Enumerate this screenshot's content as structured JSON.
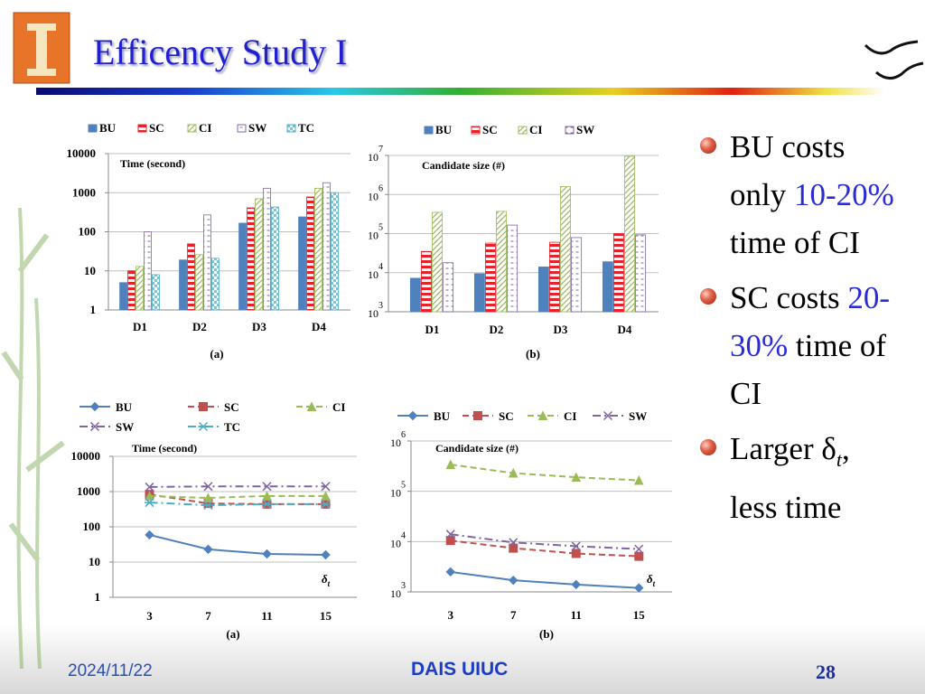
{
  "slide": {
    "title": "Efficency Study I",
    "bullets": [
      {
        "text": "BU costs only ",
        "highlight": "10-20%",
        "after": " time of CI"
      },
      {
        "text": "SC costs ",
        "highlight": "20-30%",
        "after": " time of CI"
      },
      {
        "text": "Larger δ",
        "sub": "t",
        "after": ", less time"
      }
    ],
    "footer": {
      "date": "2024/11/22",
      "org": "DAIS UIUC",
      "page": "28"
    }
  },
  "chart_data": [
    {
      "type": "bar",
      "label": "(a)",
      "ylabel": "Time (second)",
      "log_scale": true,
      "grid": true,
      "categories": [
        "D1",
        "D2",
        "D3",
        "D4"
      ],
      "series": [
        {
          "name": "BU",
          "color": "#4f81bd",
          "values": [
            5,
            19,
            166,
            240
          ]
        },
        {
          "name": "SC",
          "color": "#e8202a",
          "values": [
            10,
            49,
            410,
            780
          ]
        },
        {
          "name": "CI",
          "color": "#9bbb59",
          "values": [
            13,
            26,
            700,
            1300
          ]
        },
        {
          "name": "SW",
          "color": "#8064a2",
          "values": [
            100,
            270,
            1300,
            1800
          ]
        },
        {
          "name": "TC",
          "color": "#4bacc6",
          "values": [
            8,
            21,
            430,
            1000
          ]
        }
      ],
      "ylim": [
        1,
        10000
      ],
      "yticks": [
        1,
        10,
        100,
        1000,
        10000
      ]
    },
    {
      "type": "bar",
      "label": "(b)",
      "ylabel": "Candidate size (#)",
      "log_scale": true,
      "grid": true,
      "categories": [
        "D1",
        "D2",
        "D3",
        "D4"
      ],
      "series": [
        {
          "name": "BU",
          "color": "#4f81bd",
          "values": [
            7200,
            9400,
            14000,
            19000
          ]
        },
        {
          "name": "SC",
          "color": "#e8202a",
          "values": [
            35000,
            57000,
            60000,
            100000
          ]
        },
        {
          "name": "CI",
          "color": "#9bbb59",
          "values": [
            350000,
            370000,
            1600000,
            9500000
          ]
        },
        {
          "name": "SW",
          "color": "#8064a2",
          "values": [
            18000,
            165000,
            79000,
            93000
          ]
        }
      ],
      "ylim": [
        1000,
        10000000
      ],
      "yticks": [
        {
          "value": 1000,
          "label": "10",
          "exponent": "3"
        },
        {
          "value": 10000,
          "label": "10",
          "exponent": "4"
        },
        {
          "value": 100000,
          "label": "10",
          "exponent": "5"
        },
        {
          "value": 1000000,
          "label": "10",
          "exponent": "6"
        },
        {
          "value": 10000000,
          "label": "10",
          "exponent": "7"
        }
      ]
    },
    {
      "type": "line",
      "label": "(a)",
      "ylabel": "Time (second)",
      "log_scale": true,
      "grid": true,
      "annotation": {
        "text": "δ",
        "sub": "t"
      },
      "categories": [
        "3",
        "7",
        "11",
        "15"
      ],
      "series": [
        {
          "name": "BU",
          "color": "#4f81bd",
          "marker": "diamond",
          "line_style": "solid",
          "values": [
            59,
            23,
            17,
            16
          ]
        },
        {
          "name": "SC",
          "color": "#c0504d",
          "marker": "square",
          "line_style": "dashed",
          "values": [
            830,
            460,
            440,
            440
          ]
        },
        {
          "name": "CI",
          "color": "#9bbb59",
          "marker": "triangle",
          "line_style": "dashed",
          "values": [
            750,
            660,
            750,
            750
          ]
        },
        {
          "name": "SW",
          "color": "#8064a2",
          "marker": "x",
          "line_style": "dashdot",
          "values": [
            1350,
            1400,
            1400,
            1400
          ]
        },
        {
          "name": "TC",
          "color": "#4bacc6",
          "marker": "star",
          "line_style": "dashdot",
          "values": [
            490,
            410,
            440,
            440
          ]
        }
      ],
      "ylim": [
        1,
        10000
      ],
      "yticks": [
        1,
        10,
        100,
        1000,
        10000
      ]
    },
    {
      "type": "line",
      "label": "(b)",
      "ylabel": "Candidate size (#)",
      "log_scale": true,
      "grid": true,
      "annotation": {
        "text": "δ",
        "sub": "t"
      },
      "categories": [
        "3",
        "7",
        "11",
        "15"
      ],
      "series": [
        {
          "name": "BU",
          "color": "#4f81bd",
          "marker": "diamond",
          "line_style": "solid",
          "values": [
            2500,
            1700,
            1400,
            1200
          ]
        },
        {
          "name": "SC",
          "color": "#c0504d",
          "marker": "square",
          "line_style": "dashed",
          "values": [
            10500,
            7400,
            5800,
            5100
          ]
        },
        {
          "name": "CI",
          "color": "#9bbb59",
          "marker": "triangle",
          "line_style": "dashed",
          "values": [
            340000,
            230000,
            190000,
            165000
          ]
        },
        {
          "name": "SW",
          "color": "#8064a2",
          "marker": "x",
          "line_style": "dashdot",
          "values": [
            14000,
            9600,
            8100,
            7100
          ]
        }
      ],
      "ylim": [
        1000,
        1000000
      ],
      "yticks": [
        {
          "value": 1000,
          "label": "10",
          "exponent": "3"
        },
        {
          "value": 10000,
          "label": "10",
          "exponent": "4"
        },
        {
          "value": 100000,
          "label": "10",
          "exponent": "5"
        },
        {
          "value": 1000000,
          "label": "10",
          "exponent": "6"
        }
      ]
    }
  ]
}
